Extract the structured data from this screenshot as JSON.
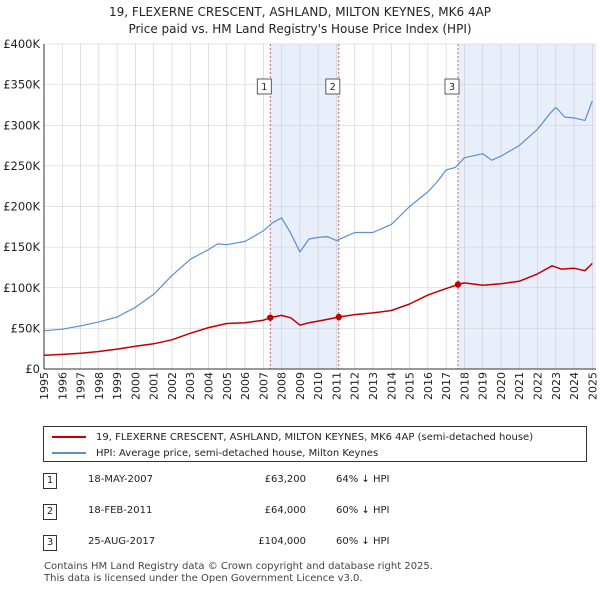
{
  "title": {
    "line1": "19, FLEXERNE CRESCENT, ASHLAND, MILTON KEYNES, MK6 4AP",
    "line2": "Price paid vs. HM Land Registry's House Price Index (HPI)"
  },
  "legend": {
    "property_label": "19, FLEXERNE CRESCENT, ASHLAND, MILTON KEYNES, MK6 4AP (semi-detached house)",
    "hpi_label": "HPI: Average price, semi-detached house, Milton Keynes"
  },
  "sales": [
    {
      "num": "1",
      "date": "18-MAY-2007",
      "price": "£63,200",
      "delta": "64% ↓ HPI"
    },
    {
      "num": "2",
      "date": "18-FEB-2011",
      "price": "£64,000",
      "delta": "60% ↓ HPI"
    },
    {
      "num": "3",
      "date": "25-AUG-2017",
      "price": "£104,000",
      "delta": "60% ↓ HPI"
    }
  ],
  "footer": {
    "line1": "Contains HM Land Registry data © Crown copyright and database right 2025.",
    "line2": "This data is licensed under the Open Government Licence v3.0."
  },
  "colors": {
    "property": "#c00000",
    "hpi": "#5b8fd0",
    "shade": "#e8eefa",
    "marker_line": "#d04040",
    "grid": "#cccccc"
  },
  "chart_data": {
    "type": "line",
    "xlim": [
      1995,
      2025.2
    ],
    "ylim": [
      0,
      400000
    ],
    "x_ticks": [
      1995,
      1996,
      1997,
      1998,
      1999,
      2000,
      2001,
      2002,
      2003,
      2004,
      2005,
      2006,
      2007,
      2008,
      2009,
      2010,
      2011,
      2012,
      2013,
      2014,
      2015,
      2016,
      2017,
      2018,
      2019,
      2020,
      2021,
      2022,
      2023,
      2024,
      2025
    ],
    "y_ticks": [
      {
        "value": 0,
        "label": "£0"
      },
      {
        "value": 50000,
        "label": "£50K"
      },
      {
        "value": 100000,
        "label": "£100K"
      },
      {
        "value": 150000,
        "label": "£150K"
      },
      {
        "value": 200000,
        "label": "£200K"
      },
      {
        "value": 250000,
        "label": "£250K"
      },
      {
        "value": 300000,
        "label": "£300K"
      },
      {
        "value": 350000,
        "label": "£350K"
      },
      {
        "value": 400000,
        "label": "£400K"
      }
    ],
    "shaded_ranges": [
      [
        2007.38,
        2011.13
      ],
      [
        2017.65,
        2025.2
      ]
    ],
    "markers": [
      {
        "label": "1",
        "x": 2007.38,
        "y": 63200
      },
      {
        "label": "2",
        "x": 2011.13,
        "y": 64000
      },
      {
        "label": "3",
        "x": 2017.65,
        "y": 104000
      }
    ],
    "series": [
      {
        "name": "19, FLEXERNE CRESCENT, ASHLAND, MILTON KEYNES, MK6 4AP (semi-detached house)",
        "x": [
          1995.0,
          1996.0,
          1997.0,
          1998.0,
          1999.0,
          2000.0,
          2001.0,
          2002.0,
          2003.0,
          2004.0,
          2005.0,
          2006.0,
          2007.0,
          2007.38,
          2008.0,
          2008.5,
          2009.0,
          2009.5,
          2010.0,
          2010.5,
          2011.13,
          2012.0,
          2013.0,
          2014.0,
          2015.0,
          2016.0,
          2017.0,
          2017.65,
          2018.0,
          2019.0,
          2020.0,
          2021.0,
          2022.0,
          2022.8,
          2023.3,
          2024.0,
          2024.6,
          2025.0
        ],
        "values": [
          17000,
          18000,
          19500,
          21500,
          24500,
          28000,
          31000,
          36000,
          44000,
          51000,
          56000,
          57000,
          60000,
          63200,
          66000,
          63000,
          54000,
          57000,
          59000,
          61000,
          64000,
          67000,
          69000,
          72000,
          80000,
          91000,
          99000,
          104000,
          106000,
          103000,
          105000,
          108000,
          117000,
          127000,
          123000,
          124000,
          121000,
          130000
        ]
      },
      {
        "name": "HPI: Average price, semi-detached house, Milton Keynes",
        "x": [
          1995.0,
          1996.0,
          1997.0,
          1998.0,
          1999.0,
          2000.0,
          2001.0,
          2002.0,
          2003.0,
          2004.0,
          2004.5,
          2005.0,
          2006.0,
          2007.0,
          2007.5,
          2008.0,
          2008.5,
          2009.0,
          2009.5,
          2010.0,
          2010.5,
          2011.0,
          2011.5,
          2012.0,
          2013.0,
          2014.0,
          2015.0,
          2016.0,
          2016.5,
          2017.0,
          2017.5,
          2018.0,
          2019.0,
          2019.5,
          2020.0,
          2021.0,
          2022.0,
          2022.7,
          2023.0,
          2023.5,
          2024.0,
          2024.6,
          2025.0
        ],
        "values": [
          47000,
          49000,
          53000,
          58000,
          64000,
          76000,
          92000,
          115000,
          135000,
          147000,
          154000,
          153000,
          157000,
          170000,
          180000,
          186000,
          167000,
          144000,
          160000,
          162000,
          163000,
          158000,
          163000,
          168000,
          168000,
          178000,
          200000,
          218000,
          230000,
          245000,
          248000,
          260000,
          265000,
          257000,
          262000,
          275000,
          295000,
          315000,
          322000,
          310000,
          309000,
          306000,
          330000
        ]
      }
    ]
  }
}
